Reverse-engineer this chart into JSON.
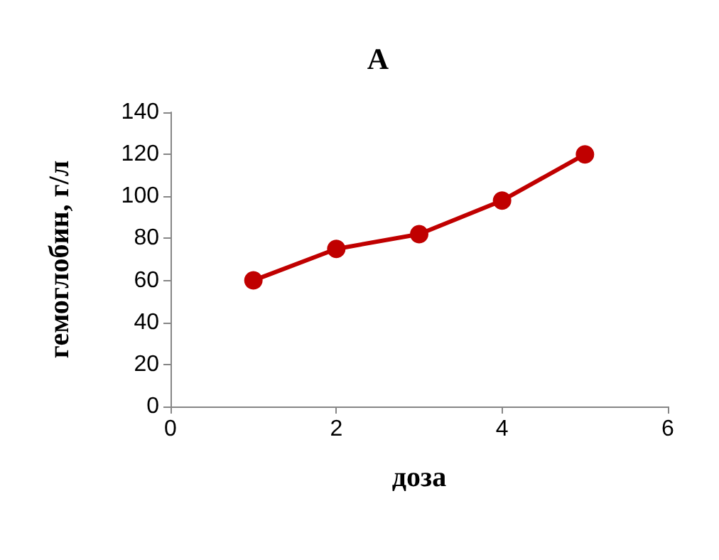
{
  "chart_data": {
    "type": "line",
    "title": "A",
    "xlabel": "доза",
    "ylabel": "гемоглобин, г/л",
    "x": [
      1,
      2,
      3,
      4,
      5
    ],
    "series": [
      {
        "color": "#c00000",
        "values": [
          60,
          75,
          82,
          98,
          120
        ]
      }
    ],
    "xlim": [
      0,
      6
    ],
    "xticks": [
      0,
      2,
      4,
      6
    ],
    "ylim": [
      0,
      140
    ],
    "yticks": [
      0,
      20,
      40,
      60,
      80,
      100,
      120,
      140
    ],
    "grid": false,
    "marker": "circle",
    "line_style": "solid"
  }
}
